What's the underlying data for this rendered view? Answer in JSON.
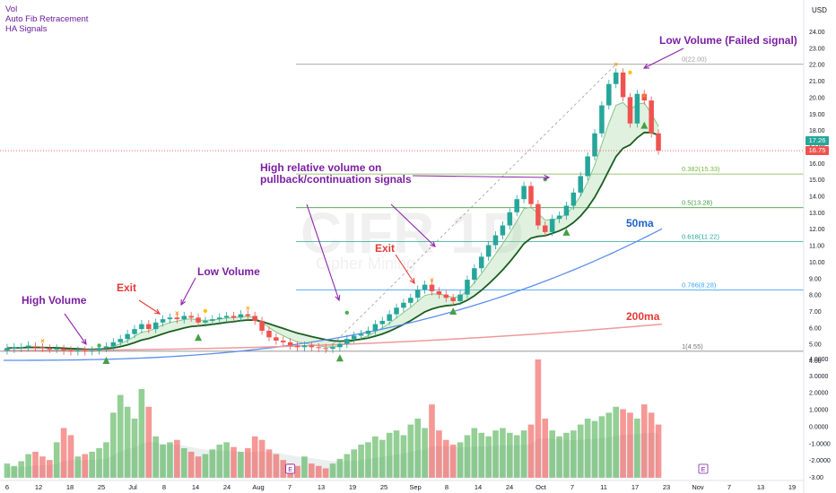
{
  "legend": [
    "Vol",
    "Auto Fib Retracement",
    "HA Signals"
  ],
  "currency": "USD",
  "watermark": {
    "ticker": "CIFR",
    "timeframe": "1D",
    "name": "Cipher Mining"
  },
  "annotations": {
    "high_volume": "High Volume",
    "exit1": "Exit",
    "low_volume": "Low Volume",
    "exit2": "Exit",
    "high_rel_volume_1": "High relative volume on",
    "high_rel_volume_2": "pullback/continuation signals",
    "failed_signal": "Low Volume (Failed signal)",
    "ma50": "50ma",
    "ma200": "200ma"
  },
  "fib_levels": [
    {
      "ratio": "0",
      "price": 22.0,
      "label": "0(22.00)",
      "color": "#9e9e9e"
    },
    {
      "ratio": "0.382",
      "price": 15.33,
      "label": "0.382(15.33)",
      "color": "#7cb342"
    },
    {
      "ratio": "0.5",
      "price": 13.28,
      "label": "0.5(13.28)",
      "color": "#43a047"
    },
    {
      "ratio": "0.618",
      "price": 11.22,
      "label": "0.618(11.22)",
      "color": "#26a69a"
    },
    {
      "ratio": "0.786",
      "price": 8.28,
      "label": "0.786(8.28)",
      "color": "#42a5f5"
    },
    {
      "ratio": "1",
      "price": 4.55,
      "label": "1(4.55)",
      "color": "#757575"
    }
  ],
  "price_tags": {
    "upper": "17.26",
    "lower": "16.75"
  },
  "chart_data": {
    "type": "candlestick",
    "price_axis": {
      "min": 4.0,
      "max": 24.0,
      "ticks": [
        4.0,
        5.0,
        6.0,
        7.0,
        8.0,
        9.0,
        10.0,
        11.0,
        12.0,
        13.0,
        14.0,
        15.0,
        16.0,
        17.0,
        18.0,
        19.0,
        20.0,
        21.0,
        22.0,
        23.0,
        24.0
      ]
    },
    "volume_axis": {
      "ticks": [
        "4.0000",
        "3.0000",
        "2.0000",
        "1.0000",
        "0.0000",
        "-1.0000",
        "-2.0000",
        "-3.00"
      ]
    },
    "x_ticks": [
      "6",
      "12",
      "18",
      "25",
      "Jul",
      "8",
      "14",
      "24",
      "Aug",
      "7",
      "13",
      "19",
      "25",
      "Sep",
      "8",
      "14",
      "24",
      "Oct",
      "7",
      "11",
      "17",
      "23",
      "Nov",
      "7",
      "13",
      "19"
    ],
    "candles": [
      [
        4.6,
        4.75
      ],
      [
        4.7,
        4.8
      ],
      [
        4.75,
        4.8
      ],
      [
        4.8,
        4.9
      ],
      [
        4.85,
        4.8
      ],
      [
        4.8,
        4.75
      ],
      [
        4.72,
        4.7
      ],
      [
        4.7,
        4.72
      ],
      [
        4.7,
        4.6
      ],
      [
        4.6,
        4.55
      ],
      [
        4.55,
        4.6
      ],
      [
        4.6,
        4.55
      ],
      [
        4.55,
        4.6
      ],
      [
        4.6,
        4.75
      ],
      [
        4.75,
        4.85
      ],
      [
        4.85,
        5.1
      ],
      [
        5.1,
        5.3
      ],
      [
        5.3,
        5.6
      ],
      [
        5.6,
        5.9
      ],
      [
        5.9,
        6.2
      ],
      [
        6.2,
        5.9
      ],
      [
        5.9,
        6.3
      ],
      [
        6.3,
        6.5
      ],
      [
        6.5,
        6.6
      ],
      [
        6.6,
        6.5
      ],
      [
        6.5,
        6.7
      ],
      [
        6.7,
        6.6
      ],
      [
        6.6,
        6.3
      ],
      [
        6.3,
        6.4
      ],
      [
        6.4,
        6.5
      ],
      [
        6.5,
        6.6
      ],
      [
        6.6,
        6.7
      ],
      [
        6.7,
        6.6
      ],
      [
        6.6,
        6.8
      ],
      [
        6.8,
        6.7
      ],
      [
        6.7,
        6.4
      ],
      [
        6.4,
        5.8
      ],
      [
        5.8,
        5.4
      ],
      [
        5.4,
        5.2
      ],
      [
        5.2,
        5.1
      ],
      [
        5.1,
        4.9
      ],
      [
        4.9,
        4.8
      ],
      [
        4.8,
        4.9
      ],
      [
        4.9,
        4.8
      ],
      [
        4.8,
        4.75
      ],
      [
        4.75,
        4.7
      ],
      [
        4.7,
        4.8
      ],
      [
        4.8,
        5.0
      ],
      [
        5.0,
        5.3
      ],
      [
        5.3,
        5.5
      ],
      [
        5.5,
        5.6
      ],
      [
        5.6,
        5.8
      ],
      [
        5.8,
        6.2
      ],
      [
        6.2,
        6.4
      ],
      [
        6.4,
        6.8
      ],
      [
        6.8,
        7.2
      ],
      [
        7.2,
        7.5
      ],
      [
        7.5,
        7.8
      ],
      [
        7.8,
        8.3
      ],
      [
        8.3,
        8.6
      ],
      [
        8.6,
        8.2
      ],
      [
        8.2,
        8.0
      ],
      [
        8.0,
        7.8
      ],
      [
        7.8,
        7.6
      ],
      [
        7.6,
        8.0
      ],
      [
        8.0,
        8.9
      ],
      [
        8.9,
        9.6
      ],
      [
        9.6,
        10.3
      ],
      [
        10.3,
        11.0
      ],
      [
        11.0,
        11.6
      ],
      [
        11.6,
        12.2
      ],
      [
        12.2,
        13.0
      ],
      [
        13.0,
        13.8
      ],
      [
        13.8,
        14.6
      ],
      [
        14.6,
        13.5
      ],
      [
        13.5,
        12.2
      ],
      [
        12.2,
        11.8
      ],
      [
        11.8,
        12.6
      ],
      [
        12.6,
        12.8
      ],
      [
        12.8,
        13.4
      ],
      [
        13.4,
        14.2
      ],
      [
        14.2,
        15.2
      ],
      [
        15.2,
        16.4
      ],
      [
        16.4,
        17.8
      ],
      [
        17.8,
        19.5
      ],
      [
        19.5,
        20.8
      ],
      [
        20.8,
        21.5
      ],
      [
        21.5,
        20.0
      ],
      [
        20.0,
        18.4
      ],
      [
        18.4,
        20.2
      ],
      [
        20.2,
        19.8
      ],
      [
        19.8,
        17.8
      ],
      [
        17.8,
        16.75
      ]
    ],
    "volume": [
      0.12,
      0.1,
      0.14,
      0.2,
      0.22,
      0.18,
      0.15,
      0.3,
      0.42,
      0.36,
      0.18,
      0.2,
      0.22,
      0.25,
      0.3,
      0.55,
      0.7,
      0.6,
      0.5,
      0.75,
      0.6,
      0.35,
      0.28,
      0.3,
      0.32,
      0.25,
      0.22,
      0.18,
      0.2,
      0.24,
      0.28,
      0.3,
      0.26,
      0.22,
      0.25,
      0.35,
      0.32,
      0.24,
      0.2,
      0.15,
      0.12,
      0.1,
      0.18,
      0.12,
      0.1,
      0.08,
      0.12,
      0.16,
      0.2,
      0.24,
      0.28,
      0.3,
      0.35,
      0.32,
      0.38,
      0.4,
      0.36,
      0.45,
      0.5,
      0.42,
      0.62,
      0.4,
      0.32,
      0.28,
      0.3,
      0.36,
      0.42,
      0.38,
      0.35,
      0.4,
      0.42,
      0.38,
      0.36,
      0.4,
      0.45,
      1.0,
      0.5,
      0.4,
      0.35,
      0.38,
      0.4,
      0.45,
      0.5,
      0.48,
      0.52,
      0.55,
      0.6,
      0.58,
      0.55,
      0.5,
      0.62,
      0.55,
      0.45
    ],
    "ma50_start": 4.0,
    "ma50_end": 12.0,
    "ma200_start": 4.6,
    "ma200_end": 6.2
  }
}
